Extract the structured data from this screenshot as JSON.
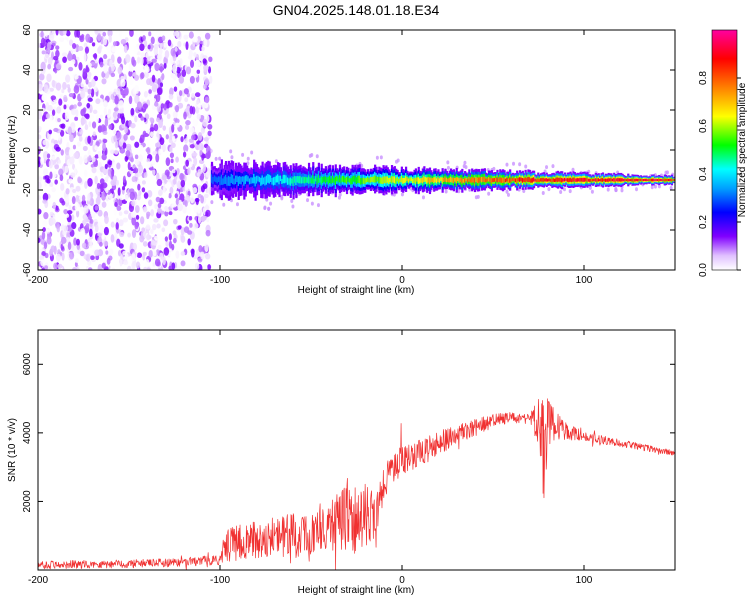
{
  "figure": {
    "title": "GN04.2025.148.01.18.E34"
  },
  "chart_data": [
    {
      "type": "heatmap",
      "xlabel": "Height of straight line (km)",
      "ylabel": "Frequency (Hz)",
      "xlim": [
        -200,
        150
      ],
      "ylim": [
        -60,
        60
      ],
      "xticks": [
        -200,
        -100,
        0,
        100
      ],
      "yticks": [
        -60,
        -40,
        -20,
        0,
        20,
        40,
        60
      ],
      "colorbar": {
        "label": "Normalized spectral amplitude",
        "range": [
          0,
          1
        ],
        "ticks": [
          0.0,
          0.2,
          0.4,
          0.6,
          0.8
        ],
        "tick_labels": [
          "0.0",
          "0.2",
          "0.4",
          "0.6",
          "0.8"
        ],
        "colormap": [
          "#ffffff",
          "#8000ff",
          "#0000ff",
          "#00ffff",
          "#00ff00",
          "#ffff00",
          "#ff0000",
          "#ff00a0"
        ]
      },
      "regions": [
        {
          "x": [
            -200,
            -105
          ],
          "y": [
            -60,
            60
          ],
          "description": "scattered low-amplitude noise",
          "amplitude": [
            0.0,
            0.15
          ]
        },
        {
          "x": [
            -105,
            150
          ],
          "y_center": -15,
          "y_halfwidth": [
            8,
            2
          ],
          "description": "signal band narrowing with height",
          "amplitude": [
            0.3,
            0.95
          ]
        }
      ]
    },
    {
      "type": "line",
      "xlabel": "Height of straight line (km)",
      "ylabel": "SNR (10 * v/v)",
      "xlim": [
        -200,
        150
      ],
      "ylim": [
        0,
        7000
      ],
      "xticks": [
        -200,
        -100,
        0,
        100
      ],
      "yticks": [
        2000,
        4000,
        6000
      ],
      "color": "#f03030",
      "envelope": {
        "x": [
          -200,
          -150,
          -120,
          -100,
          -97,
          -80,
          -60,
          -50,
          -40,
          -30,
          -20,
          -15,
          -10,
          0,
          10,
          20,
          30,
          40,
          50,
          60,
          70,
          75,
          78,
          80,
          85,
          90,
          100,
          110,
          120,
          130,
          140,
          150
        ],
        "mean": [
          150,
          180,
          230,
          300,
          700,
          900,
          1000,
          1100,
          1300,
          1500,
          1500,
          1400,
          2600,
          3200,
          3400,
          3700,
          3950,
          4150,
          4350,
          4450,
          4400,
          4300,
          3400,
          4300,
          4200,
          4050,
          3900,
          3800,
          3700,
          3600,
          3500,
          3400
        ],
        "spread": [
          120,
          120,
          130,
          150,
          500,
          550,
          650,
          700,
          800,
          1000,
          1100,
          1000,
          500,
          450,
          400,
          350,
          300,
          250,
          200,
          150,
          150,
          800,
          1800,
          700,
          400,
          250,
          150,
          120,
          110,
          100,
          90,
          80
        ]
      }
    }
  ]
}
